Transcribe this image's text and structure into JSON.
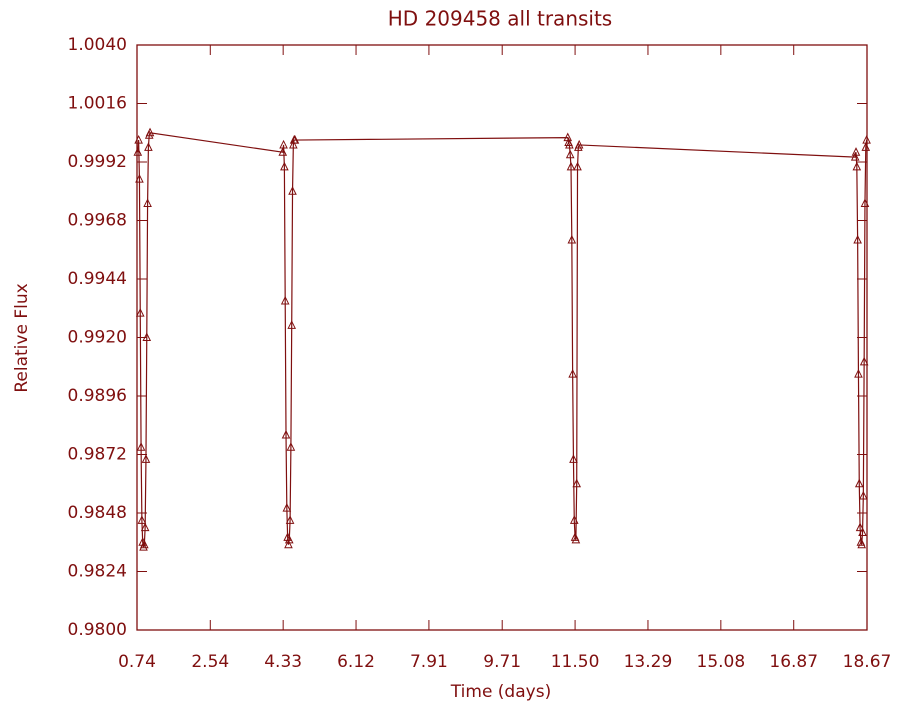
{
  "chart_data": {
    "type": "line",
    "title": "HD 209458 all transits",
    "x_label": "Time (days)",
    "y_label": "Relative Flux",
    "color": "#7f0f0f",
    "marker": "triangle",
    "xlim": [
      0.74,
      18.67
    ],
    "ylim": [
      0.98,
      1.004
    ],
    "xticks": [
      0.74,
      2.54,
      4.33,
      6.12,
      7.91,
      9.71,
      {
        "value": 11.5,
        "label": "11.50"
      },
      13.29,
      15.08,
      16.87,
      18.67
    ],
    "yticks": [
      {
        "value": 1.004,
        "label": "1.0040"
      },
      1.0016,
      0.9992,
      0.9968,
      0.9944,
      {
        "value": 0.992,
        "label": "0.9920"
      },
      0.9896,
      0.9872,
      0.9848,
      0.9824,
      {
        "value": 0.98,
        "label": "0.9800"
      }
    ],
    "x": [
      0.76,
      0.78,
      0.8,
      0.82,
      0.84,
      0.86,
      0.88,
      0.9,
      0.92,
      0.94,
      0.96,
      0.98,
      1.0,
      1.02,
      1.04,
      1.06,
      4.32,
      4.34,
      4.36,
      4.38,
      4.4,
      4.42,
      4.44,
      4.46,
      4.48,
      4.5,
      4.52,
      4.54,
      4.56,
      4.58,
      4.6,
      4.62,
      11.32,
      11.34,
      11.36,
      11.38,
      11.4,
      11.42,
      11.44,
      11.46,
      11.48,
      11.5,
      11.52,
      11.54,
      11.56,
      11.58,
      11.6,
      18.38,
      18.4,
      18.42,
      18.44,
      18.46,
      18.48,
      18.5,
      18.52,
      18.54,
      18.56,
      18.58,
      18.6,
      18.62,
      18.64,
      18.66
    ],
    "values": [
      0.9996,
      1.0001,
      0.9985,
      0.993,
      0.9875,
      0.9845,
      0.9836,
      0.9834,
      0.9835,
      0.9842,
      0.987,
      0.992,
      0.9975,
      0.9998,
      1.0003,
      1.0004,
      0.9996,
      0.9999,
      0.999,
      0.9935,
      0.988,
      0.985,
      0.9838,
      0.9835,
      0.9837,
      0.9845,
      0.9875,
      0.9925,
      0.998,
      0.9999,
      1.0001,
      1.0001,
      1.0002,
      1.0,
      0.9999,
      0.9995,
      0.999,
      0.996,
      0.9905,
      0.987,
      0.9845,
      0.9838,
      0.9837,
      0.986,
      0.999,
      0.9998,
      0.9999,
      0.9994,
      0.9996,
      0.999,
      0.996,
      0.9905,
      0.986,
      0.9842,
      0.9836,
      0.9835,
      0.984,
      0.9855,
      0.991,
      0.9975,
      0.9998,
      1.0001
    ]
  }
}
